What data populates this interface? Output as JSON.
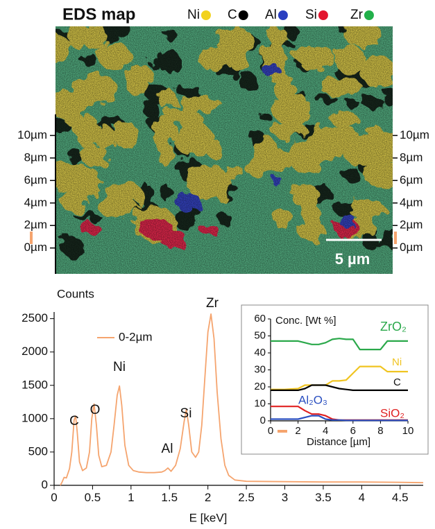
{
  "map": {
    "title": "EDS map",
    "legend": [
      {
        "name": "Ni",
        "color": "#f2d21c"
      },
      {
        "name": "C",
        "color": "#000000"
      },
      {
        "name": "Al",
        "color": "#2a3fc0"
      },
      {
        "name": "Si",
        "color": "#e3162f"
      },
      {
        "name": "Zr",
        "color": "#22b04a"
      }
    ],
    "ylim": [
      -2.3,
      19.7
    ],
    "yticks": [
      {
        "value": 0,
        "label": "0µm"
      },
      {
        "value": 2,
        "label": "2µm"
      },
      {
        "value": 4,
        "label": "4µm"
      },
      {
        "value": 6,
        "label": "6µm"
      },
      {
        "value": 8,
        "label": "8µm"
      },
      {
        "value": 10,
        "label": "10µm"
      }
    ],
    "scale_bar": "5 µm"
  },
  "chart_data": [
    {
      "type": "line",
      "ylabel": "Counts",
      "xlabel": "E [keV]",
      "xlim": [
        0,
        4.8
      ],
      "ylim": [
        0,
        2600
      ],
      "xticks": [
        0,
        0.5,
        1,
        1.5,
        2,
        2.5,
        3,
        3.5,
        4,
        4.5
      ],
      "yticks": [
        0,
        500,
        1000,
        1500,
        2000,
        2500
      ],
      "annotations": [
        "C",
        "O",
        "Ni",
        "Al",
        "Si",
        "Zr"
      ],
      "x": [
        0.08,
        0.1,
        0.13,
        0.16,
        0.2,
        0.23,
        0.26,
        0.28,
        0.3,
        0.33,
        0.37,
        0.42,
        0.46,
        0.49,
        0.52,
        0.55,
        0.58,
        0.62,
        0.68,
        0.74,
        0.78,
        0.82,
        0.85,
        0.88,
        0.92,
        0.97,
        1.03,
        1.1,
        1.2,
        1.3,
        1.4,
        1.44,
        1.48,
        1.52,
        1.58,
        1.64,
        1.69,
        1.72,
        1.75,
        1.79,
        1.84,
        1.88,
        1.92,
        1.96,
        2.0,
        2.04,
        2.08,
        2.12,
        2.17,
        2.22,
        2.27,
        2.35,
        2.5,
        3.0,
        3.5,
        4.0,
        4.5,
        4.8
      ],
      "series": [
        {
          "name": "0-2µm",
          "color": "#f5a46e",
          "values": [
            0,
            40,
            120,
            110,
            250,
            500,
            980,
            1040,
            800,
            350,
            220,
            260,
            500,
            1000,
            1220,
            900,
            450,
            280,
            300,
            500,
            900,
            1350,
            1490,
            1200,
            600,
            300,
            220,
            200,
            190,
            190,
            200,
            220,
            260,
            210,
            300,
            550,
            950,
            1140,
            900,
            500,
            420,
            500,
            900,
            1600,
            2300,
            2570,
            2200,
            1400,
            700,
            300,
            150,
            80,
            60,
            55,
            50,
            50,
            45,
            40
          ]
        }
      ]
    },
    {
      "type": "line",
      "ylabel": "Conc. [Wt %]",
      "xlabel": "Distance [µm]",
      "xlim": [
        0,
        10
      ],
      "ylim": [
        0,
        60
      ],
      "xticks": [
        0,
        2,
        4,
        6,
        8,
        10
      ],
      "yticks": [
        0,
        10,
        20,
        30,
        40,
        50,
        60
      ],
      "x": [
        0,
        1,
        2,
        2.5,
        3,
        3.5,
        4,
        4.5,
        5,
        5.5,
        6,
        6.5,
        7,
        8,
        8.5,
        9,
        10
      ],
      "series": [
        {
          "name": "ZrO₂",
          "color": "#2aa84a",
          "values": [
            47,
            47,
            47,
            46,
            45,
            45,
            46,
            48,
            48.5,
            48,
            48,
            42,
            42,
            42,
            47,
            47,
            47
          ]
        },
        {
          "name": "Ni",
          "color": "#f0c420",
          "values": [
            18.5,
            18.5,
            19,
            21,
            21,
            21,
            21,
            23.5,
            23.5,
            24,
            28,
            32,
            32,
            32,
            29,
            29,
            29
          ]
        },
        {
          "name": "C",
          "color": "#000000",
          "values": [
            18,
            18,
            18,
            19,
            21,
            21,
            21,
            20,
            19,
            18.5,
            18,
            18,
            18,
            18,
            18,
            18,
            18
          ]
        },
        {
          "name": "Al₂O₃",
          "color": "#2a4fc0",
          "values": [
            1,
            1,
            1,
            2,
            3,
            3,
            1,
            0.5,
            0.5,
            0.3,
            0.3,
            0.3,
            0.3,
            0.3,
            0.3,
            0.3,
            0.3
          ]
        },
        {
          "name": "SiO₂",
          "color": "#e02020",
          "values": [
            8.5,
            8.5,
            8.5,
            6,
            4,
            4,
            3,
            1,
            0.5,
            0.5,
            0.5,
            0.5,
            0.5,
            0.5,
            0.5,
            0.5,
            0.5
          ]
        }
      ]
    }
  ]
}
